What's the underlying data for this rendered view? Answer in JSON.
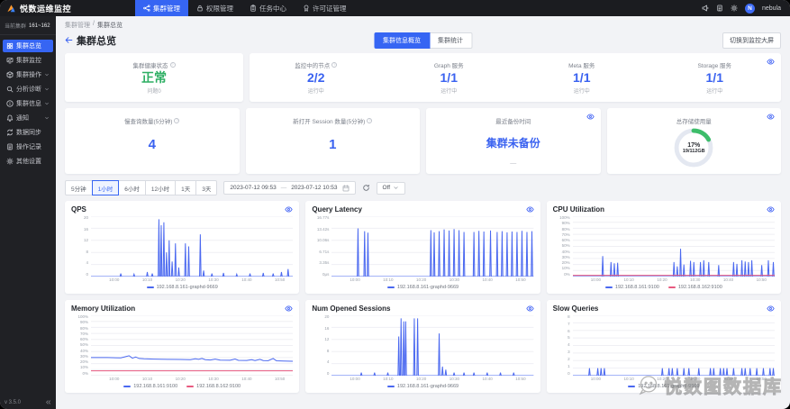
{
  "topbar": {
    "brand": "悦数运维监控",
    "nav": [
      {
        "label": "集群管理",
        "active": true
      },
      {
        "label": "权限管理",
        "active": false
      },
      {
        "label": "任务中心",
        "active": false
      },
      {
        "label": "许可证管理",
        "active": false
      }
    ],
    "user_name": "nebula",
    "user_initial": "N"
  },
  "sidebar": {
    "current_cluster_label": "当前集群",
    "cluster_name": "161~162",
    "items": [
      {
        "label": "集群总览",
        "icon": "grid",
        "active": true,
        "expandable": false
      },
      {
        "label": "集群监控",
        "icon": "monitor",
        "active": false,
        "expandable": false
      },
      {
        "label": "集群操作",
        "icon": "box",
        "active": false,
        "expandable": true
      },
      {
        "label": "分析诊断",
        "icon": "magnifier",
        "active": false,
        "expandable": true
      },
      {
        "label": "集群信息",
        "icon": "info",
        "active": false,
        "expandable": true
      },
      {
        "label": "通知",
        "icon": "bell",
        "active": false,
        "expandable": true
      },
      {
        "label": "数据同步",
        "icon": "sync",
        "active": false,
        "expandable": false
      },
      {
        "label": "操作记录",
        "icon": "doc",
        "active": false,
        "expandable": false
      },
      {
        "label": "其他设置",
        "icon": "gear",
        "active": false,
        "expandable": false
      }
    ],
    "version": "v 3.5.0"
  },
  "breadcrumb": {
    "parent": "集群管理",
    "separator": "/",
    "current": "集群总览"
  },
  "page": {
    "title": "集群总览",
    "toggle": [
      {
        "label": "集群信息概览",
        "active": true
      },
      {
        "label": "集群统计",
        "active": false
      }
    ],
    "big_screen_button": "切换到监控大屏"
  },
  "overview_cards": {
    "health": {
      "title": "集群健康状态",
      "value": "正常",
      "sub": "问题0",
      "value_color": "#2eaf64"
    },
    "services": [
      {
        "title": "监控中的节点",
        "value": "2/2",
        "sub": "运行中",
        "info": true
      },
      {
        "title": "Graph 服务",
        "value": "1/1",
        "sub": "运行中",
        "info": false
      },
      {
        "title": "Meta 服务",
        "value": "1/1",
        "sub": "运行中",
        "info": false
      },
      {
        "title": "Storage 服务",
        "value": "1/1",
        "sub": "运行中",
        "info": false
      }
    ],
    "slow_query": {
      "title": "慢查询数量(5分钟)",
      "value": "4"
    },
    "sessions": {
      "title": "新打开 Session 数量(5分钟)",
      "value": "1"
    },
    "backup": {
      "title": "最近备份时间",
      "value": "集群未备份",
      "sub": "—"
    },
    "storage": {
      "title": "总存储使用量",
      "percent": 17,
      "percent_label": "17%",
      "detail": "19/112GB",
      "ring_color": "#3dbd6a",
      "track_color": "#e4e8f1"
    }
  },
  "filter": {
    "ranges": [
      {
        "label": "5分钟",
        "active": false
      },
      {
        "label": "1小时",
        "active": true
      },
      {
        "label": "6小时",
        "active": false
      },
      {
        "label": "12小时",
        "active": false
      },
      {
        "label": "1天",
        "active": false
      },
      {
        "label": "3天",
        "active": false
      }
    ],
    "start": "2023-07-12 09:53",
    "range_sep": "—",
    "end": "2023-07-12 10:53",
    "auto_refresh_label": "Off"
  },
  "chart_data": [
    {
      "key": "qps",
      "type": "line",
      "title": "QPS",
      "ymax": 20,
      "yticks": [
        "20",
        "16",
        "12",
        "8",
        "4",
        "0"
      ],
      "xmin": 0,
      "xmax": 61,
      "xticks": [
        {
          "t": 7,
          "label": "10:00"
        },
        {
          "t": 17,
          "label": "10:10"
        },
        {
          "t": 27,
          "label": "10:20"
        },
        {
          "t": 37,
          "label": "10:30"
        },
        {
          "t": 47,
          "label": "10:40"
        },
        {
          "t": 57,
          "label": "10:50"
        }
      ],
      "series": [
        {
          "name": "192.168.8.161-graphd-9669",
          "color": "#4a68f0",
          "fill": true,
          "spikes": [
            [
              9,
              1
            ],
            [
              13,
              0.8
            ],
            [
              17,
              1.5
            ],
            [
              18.5,
              1
            ],
            [
              20.5,
              19
            ],
            [
              21.2,
              17
            ],
            [
              22,
              18
            ],
            [
              22.8,
              8
            ],
            [
              23.6,
              12
            ],
            [
              24.5,
              5
            ],
            [
              25.5,
              11
            ],
            [
              26.5,
              3
            ],
            [
              28.5,
              11
            ],
            [
              29.5,
              10
            ],
            [
              33,
              14
            ],
            [
              34,
              2
            ],
            [
              36.5,
              1
            ],
            [
              40,
              1.2
            ],
            [
              44,
              0.8
            ],
            [
              48,
              1
            ],
            [
              52,
              1.2
            ],
            [
              55,
              1
            ],
            [
              57.5,
              1.5
            ],
            [
              59.5,
              2.5
            ]
          ]
        }
      ]
    },
    {
      "key": "query_latency",
      "type": "line",
      "title": "Query Latency",
      "ymax": 16.77,
      "yticks": [
        "16.77s",
        "13.42s",
        "10.06s",
        "6.71s",
        "3.35s",
        "0μs"
      ],
      "xmin": 0,
      "xmax": 61,
      "xticks": [
        {
          "t": 7,
          "label": "10:00"
        },
        {
          "t": 17,
          "label": "10:10"
        },
        {
          "t": 27,
          "label": "10:20"
        },
        {
          "t": 37,
          "label": "10:30"
        },
        {
          "t": 47,
          "label": "10:40"
        },
        {
          "t": 57,
          "label": "10:50"
        }
      ],
      "series": [
        {
          "name": "192.168.8.161-graphd-9669",
          "color": "#4a68f0",
          "fill": true,
          "spikes": [
            [
              8,
              13.4
            ],
            [
              10,
              12.6
            ],
            [
              11,
              12.2
            ],
            [
              30,
              12.9
            ],
            [
              31,
              12.3
            ],
            [
              32.5,
              12.6
            ],
            [
              34,
              13.1
            ],
            [
              35.5,
              12.8
            ],
            [
              37,
              13.2
            ],
            [
              38.5,
              12.9
            ],
            [
              40,
              12.4
            ],
            [
              43,
              12.4
            ],
            [
              44.5,
              12.7
            ],
            [
              46,
              12.5
            ],
            [
              48,
              12.8
            ],
            [
              50,
              12.4
            ],
            [
              51.5,
              12.6
            ],
            [
              53,
              12.3
            ],
            [
              54.5,
              12.5
            ],
            [
              56,
              12.4
            ],
            [
              57.5,
              12.7
            ],
            [
              59,
              12.4
            ],
            [
              60.5,
              12.6
            ]
          ]
        }
      ]
    },
    {
      "key": "cpu",
      "type": "line",
      "title": "CPU Utilization",
      "ymax": 100,
      "yticks": [
        "100%",
        "90%",
        "80%",
        "70%",
        "60%",
        "50%",
        "40%",
        "30%",
        "20%",
        "10%",
        "0%"
      ],
      "xmin": 0,
      "xmax": 61,
      "xticks": [
        {
          "t": 7,
          "label": "10:00"
        },
        {
          "t": 17,
          "label": "10:10"
        },
        {
          "t": 27,
          "label": "10:20"
        },
        {
          "t": 37,
          "label": "10:30"
        },
        {
          "t": 47,
          "label": "10:40"
        },
        {
          "t": 57,
          "label": "10:50"
        }
      ],
      "series": [
        {
          "name": "192.168.8.161:9100",
          "color": "#4a68f0",
          "fill": true,
          "spikes": [
            [
              9,
              34
            ],
            [
              11.5,
              24
            ],
            [
              12.5,
              22
            ],
            [
              13.5,
              23
            ],
            [
              30.5,
              24
            ],
            [
              31.5,
              17
            ],
            [
              32.5,
              46
            ],
            [
              33.5,
              20
            ],
            [
              35.5,
              26
            ],
            [
              36.5,
              24
            ],
            [
              38.5,
              24
            ],
            [
              39.5,
              27
            ],
            [
              41,
              24
            ],
            [
              44,
              19
            ],
            [
              48.5,
              24
            ],
            [
              49.5,
              21
            ],
            [
              51,
              27
            ],
            [
              52,
              25
            ],
            [
              53,
              24
            ],
            [
              54,
              27
            ],
            [
              57,
              19
            ],
            [
              59,
              27
            ],
            [
              60.5,
              24
            ]
          ]
        },
        {
          "name": "192.168.8.162:9100",
          "color": "#e85a80",
          "points": [
            [
              0,
              2
            ],
            [
              61,
              2
            ]
          ]
        }
      ]
    },
    {
      "key": "memory",
      "type": "line",
      "title": "Memory Utilization",
      "ymax": 100,
      "yticks": [
        "100%",
        "90%",
        "80%",
        "70%",
        "60%",
        "50%",
        "40%",
        "30%",
        "20%",
        "10%",
        "0%"
      ],
      "xmin": 0,
      "xmax": 61,
      "xticks": [
        {
          "t": 7,
          "label": "10:00"
        },
        {
          "t": 17,
          "label": "10:10"
        },
        {
          "t": 27,
          "label": "10:20"
        },
        {
          "t": 37,
          "label": "10:30"
        },
        {
          "t": 47,
          "label": "10:40"
        },
        {
          "t": 57,
          "label": "10:50"
        }
      ],
      "series": [
        {
          "name": "192.168.8.161:9100",
          "color": "#4a68f0",
          "points": [
            [
              0,
              30
            ],
            [
              5,
              30
            ],
            [
              9,
              29.5
            ],
            [
              11.5,
              33
            ],
            [
              12.5,
              29
            ],
            [
              13.5,
              31
            ],
            [
              14.5,
              28.5
            ],
            [
              16,
              28
            ],
            [
              19,
              27.5
            ],
            [
              23,
              27
            ],
            [
              27,
              26.8
            ],
            [
              30,
              26.5
            ],
            [
              31.5,
              28
            ],
            [
              32.5,
              27
            ],
            [
              33.5,
              28.5
            ],
            [
              34.5,
              26.5
            ],
            [
              36,
              26
            ],
            [
              37.5,
              27.5
            ],
            [
              39,
              25.8
            ],
            [
              42,
              25.6
            ],
            [
              43.5,
              27.5
            ],
            [
              44.5,
              25.4
            ],
            [
              47,
              25.2
            ],
            [
              48.5,
              26.5
            ],
            [
              49.5,
              25
            ],
            [
              51,
              27
            ],
            [
              52,
              25
            ],
            [
              53.5,
              24.8
            ],
            [
              55,
              28.5
            ],
            [
              56,
              24.6
            ],
            [
              58,
              24.2
            ],
            [
              61,
              23.8
            ]
          ]
        },
        {
          "name": "192.168.8.162:9100",
          "color": "#e85a80",
          "points": [
            [
              0,
              8
            ],
            [
              61,
              8
            ]
          ]
        }
      ]
    },
    {
      "key": "sessions",
      "type": "line",
      "title": "Num Opened Sessions",
      "ymax": 20,
      "yticks": [
        "20",
        "16",
        "12",
        "8",
        "4",
        "0"
      ],
      "xmin": 0,
      "xmax": 61,
      "xticks": [
        {
          "t": 7,
          "label": "10:00"
        },
        {
          "t": 17,
          "label": "10:10"
        },
        {
          "t": 27,
          "label": "10:20"
        },
        {
          "t": 37,
          "label": "10:30"
        },
        {
          "t": 47,
          "label": "10:40"
        },
        {
          "t": 57,
          "label": "10:50"
        }
      ],
      "series": [
        {
          "name": "192.168.8.161-graphd-9669",
          "color": "#4a68f0",
          "fill": true,
          "spikes": [
            [
              9,
              1
            ],
            [
              13,
              1
            ],
            [
              17,
              1
            ],
            [
              20.3,
              13
            ],
            [
              21,
              19
            ],
            [
              21.8,
              18
            ],
            [
              22.4,
              18
            ],
            [
              25,
              19
            ],
            [
              26,
              19
            ],
            [
              32.5,
              14
            ],
            [
              33.5,
              3
            ],
            [
              34.5,
              2
            ],
            [
              37,
              1
            ],
            [
              40,
              1
            ],
            [
              43,
              1
            ],
            [
              47,
              1
            ],
            [
              51,
              1
            ],
            [
              55,
              1
            ]
          ]
        }
      ]
    },
    {
      "key": "slow_queries",
      "type": "line",
      "title": "Slow Queries",
      "ymax": 8,
      "yticks": [
        "8",
        "7",
        "6",
        "5",
        "4",
        "3",
        "2",
        "1",
        "0"
      ],
      "xmin": 0,
      "xmax": 61,
      "xticks": [
        {
          "t": 7,
          "label": "10:00"
        },
        {
          "t": 17,
          "label": "10:10"
        },
        {
          "t": 27,
          "label": "10:20"
        },
        {
          "t": 37,
          "label": "10:30"
        },
        {
          "t": 47,
          "label": "10:40"
        },
        {
          "t": 57,
          "label": "10:50"
        }
      ],
      "series": [
        {
          "name": "192.168.8.161-graphd-9669",
          "color": "#4a68f0",
          "fill": true,
          "spikes": [
            [
              5,
              1
            ],
            [
              7.5,
              1
            ],
            [
              8.5,
              1
            ],
            [
              9.5,
              1
            ],
            [
              27,
              1
            ],
            [
              29,
              1
            ],
            [
              30,
              1
            ],
            [
              31.5,
              1
            ],
            [
              33.5,
              1
            ],
            [
              35,
              1
            ],
            [
              38,
              1
            ],
            [
              41.5,
              1
            ],
            [
              42.5,
              1
            ],
            [
              44.5,
              1
            ],
            [
              45.5,
              1
            ],
            [
              46.5,
              1
            ],
            [
              48.5,
              1
            ],
            [
              51,
              1
            ],
            [
              52,
              1
            ],
            [
              53.5,
              1
            ],
            [
              55.5,
              1
            ],
            [
              57.5,
              1
            ],
            [
              59.5,
              1
            ],
            [
              60.5,
              1
            ]
          ]
        }
      ]
    }
  ],
  "watermark": {
    "text": "悦数图数据库"
  }
}
